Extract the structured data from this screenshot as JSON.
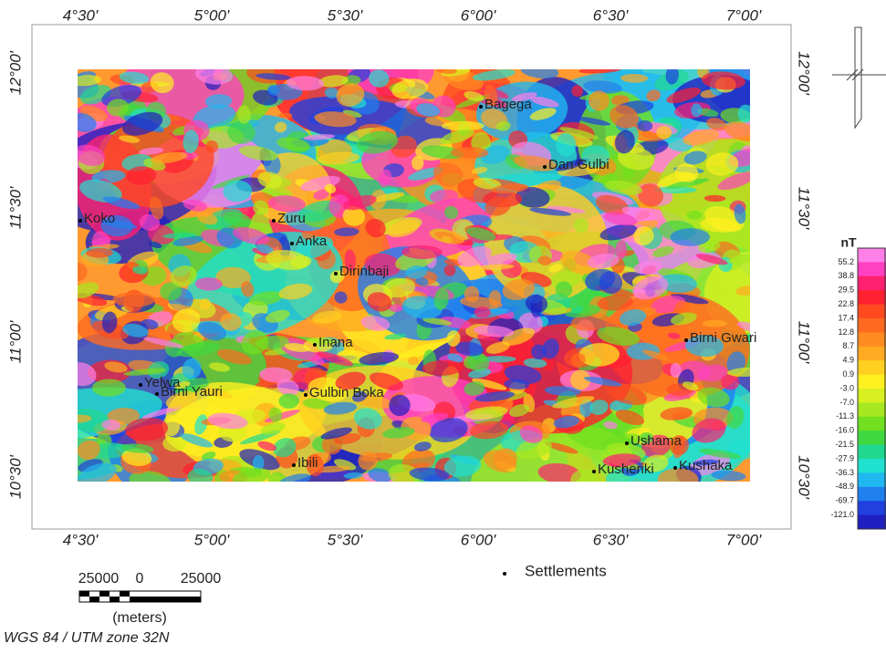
{
  "map": {
    "lon_labels": [
      "4°30'",
      "5°00'",
      "5°30'",
      "6°00'",
      "6°30'",
      "7°00'"
    ],
    "lat_labels": [
      "12°00'",
      "11°30'",
      "11°00'",
      "10°30'"
    ],
    "settlements": [
      "Bagega",
      "Dan Gulbi",
      "Koko",
      "Zuru",
      "Anka",
      "Dirinbaji",
      "Inana",
      "Birni Gwari",
      "Yelwa",
      "Birni Yauri",
      "Gulbin Boka",
      "Ushama",
      "Ibili",
      "Kusheriki",
      "Kushaka"
    ],
    "legend_title": "nT",
    "legend_labels": [
      "55.2",
      "38.8",
      "29.5",
      "22.8",
      "17.4",
      "12.8",
      "8.7",
      "4.9",
      "0.9",
      "-3.0",
      "-7.0",
      "-11.3",
      "-16.0",
      "-21.5",
      "-27.9",
      "-36.3",
      "-48.9",
      "-69.7",
      "-121.0"
    ],
    "settlements_legend": "Settlements",
    "scale_labels": [
      "25000",
      "0",
      "25000"
    ],
    "scale_unit": "(meters)",
    "projection": "WGS 84 / UTM zone 32N"
  }
}
